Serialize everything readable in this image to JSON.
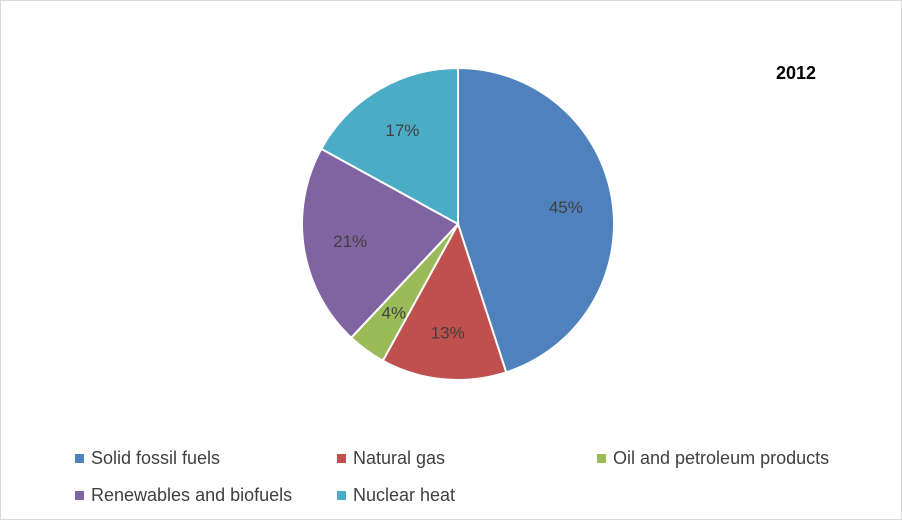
{
  "chart_data": {
    "type": "pie",
    "title": "2012",
    "categories": [
      "Solid fossil fuels",
      "Natural gas",
      "Oil and petroleum products",
      "Renewables and biofuels",
      "Nuclear heat"
    ],
    "values": [
      45,
      13,
      4,
      21,
      17
    ],
    "value_labels": [
      "45%",
      "13%",
      "4%",
      "21%",
      "17%"
    ],
    "colors": [
      "#4f81bd",
      "#c0504d",
      "#9bbb59",
      "#8064a2",
      "#4bacc6"
    ],
    "legend_position": "bottom"
  }
}
